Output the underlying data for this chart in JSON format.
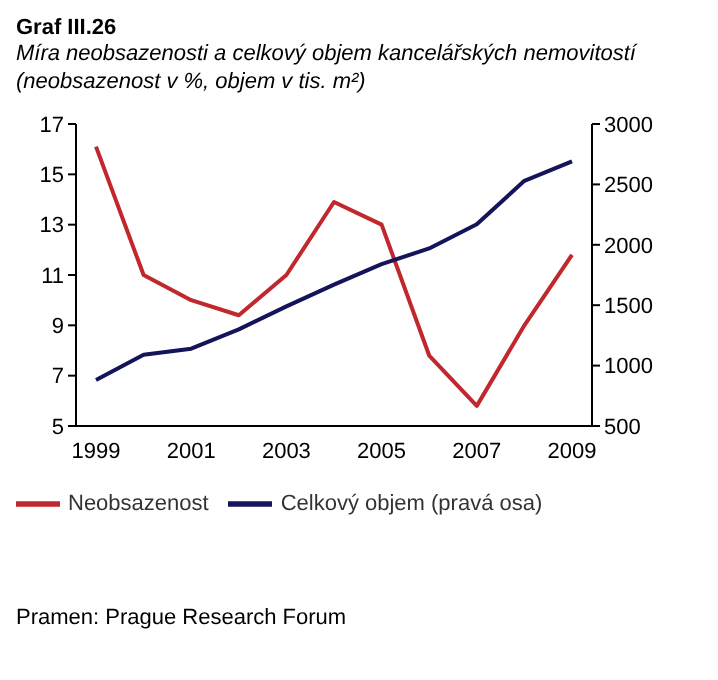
{
  "chart_data": {
    "type": "line",
    "title": "Graf III.26",
    "subtitle": "Míra neobsazenosti a celkový objem kancelářských nemovitostí (neobsazenost v %, objem v tis. m²)",
    "categories": [
      "1999",
      null,
      "2001",
      null,
      "2003",
      null,
      "2005",
      null,
      "2007",
      null,
      "2009"
    ],
    "series": [
      {
        "name": "Neobsazenost",
        "color": "#c0282d",
        "values": [
          16.1,
          11.0,
          10.0,
          9.4,
          11.0,
          13.9,
          13.0,
          7.8,
          5.8,
          9.0,
          11.8
        ]
      },
      {
        "name": "Celkový objem (pravá osa)",
        "color": "#14145a",
        "axis": "y2",
        "values": [
          880,
          1090,
          1140,
          1300,
          1490,
          1670,
          1840,
          1970,
          2170,
          2530,
          2690
        ]
      }
    ],
    "ylim": [
      5,
      17
    ],
    "yticks": [
      5,
      7,
      9,
      11,
      13,
      15,
      17
    ],
    "y2lim": [
      500,
      3000
    ],
    "y2ticks": [
      500,
      1000,
      1500,
      2000,
      2500,
      3000
    ],
    "legend": "bottom",
    "marker": "none",
    "line_style": "solid",
    "annotations": [
      "Pramen: Prague Research Forum"
    ]
  }
}
